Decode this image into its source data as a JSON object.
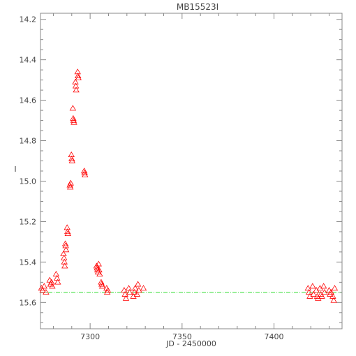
{
  "chart_data": {
    "type": "scatter",
    "title": "MB15523I",
    "xlabel": "JD - 2450000",
    "ylabel": "I",
    "xlim": [
      7273,
      7437
    ],
    "ylim": [
      15.73,
      14.17
    ],
    "y_inverted": true,
    "grid": false,
    "x_ticks": [
      7300,
      7350,
      7400
    ],
    "y_ticks": [
      14.2,
      14.4,
      14.6,
      14.8,
      15.0,
      15.2,
      15.4,
      15.6
    ],
    "marker": "open-triangle",
    "colors": {
      "points": "#ff0000",
      "baseline": "#33dd33",
      "axes": "#888888",
      "text": "#444444"
    },
    "baseline": {
      "style": "dash-dot",
      "y": 15.55,
      "x_range": [
        7273,
        7437
      ]
    },
    "points": [
      {
        "x": 7273.5,
        "y": 15.53
      },
      {
        "x": 7274.2,
        "y": 15.54
      },
      {
        "x": 7275.0,
        "y": 15.52
      },
      {
        "x": 7276.0,
        "y": 15.55
      },
      {
        "x": 7278.0,
        "y": 15.49
      },
      {
        "x": 7278.5,
        "y": 15.51
      },
      {
        "x": 7279.0,
        "y": 15.5
      },
      {
        "x": 7279.4,
        "y": 15.52
      },
      {
        "x": 7281.5,
        "y": 15.46
      },
      {
        "x": 7282.0,
        "y": 15.48
      },
      {
        "x": 7282.4,
        "y": 15.5
      },
      {
        "x": 7285.5,
        "y": 15.36
      },
      {
        "x": 7285.8,
        "y": 15.38
      },
      {
        "x": 7286.0,
        "y": 15.4
      },
      {
        "x": 7286.2,
        "y": 15.42
      },
      {
        "x": 7286.5,
        "y": 15.31
      },
      {
        "x": 7286.7,
        "y": 15.32
      },
      {
        "x": 7286.9,
        "y": 15.34
      },
      {
        "x": 7287.5,
        "y": 15.23
      },
      {
        "x": 7287.7,
        "y": 15.25
      },
      {
        "x": 7287.9,
        "y": 15.26
      },
      {
        "x": 7289.0,
        "y": 15.02
      },
      {
        "x": 7289.2,
        "y": 15.03
      },
      {
        "x": 7289.4,
        "y": 15.01
      },
      {
        "x": 7289.8,
        "y": 14.87
      },
      {
        "x": 7290.0,
        "y": 14.89
      },
      {
        "x": 7290.2,
        "y": 14.9
      },
      {
        "x": 7290.6,
        "y": 14.64
      },
      {
        "x": 7290.8,
        "y": 14.69
      },
      {
        "x": 7291.0,
        "y": 14.7
      },
      {
        "x": 7291.2,
        "y": 14.71
      },
      {
        "x": 7292.0,
        "y": 14.51
      },
      {
        "x": 7292.2,
        "y": 14.53
      },
      {
        "x": 7292.4,
        "y": 14.55
      },
      {
        "x": 7293.2,
        "y": 14.46
      },
      {
        "x": 7293.4,
        "y": 14.48
      },
      {
        "x": 7293.6,
        "y": 14.49
      },
      {
        "x": 7296.8,
        "y": 14.95
      },
      {
        "x": 7297.0,
        "y": 14.96
      },
      {
        "x": 7297.2,
        "y": 14.97
      },
      {
        "x": 7303.5,
        "y": 15.42
      },
      {
        "x": 7303.8,
        "y": 15.43
      },
      {
        "x": 7304.0,
        "y": 15.44
      },
      {
        "x": 7304.3,
        "y": 15.45
      },
      {
        "x": 7304.6,
        "y": 15.41
      },
      {
        "x": 7304.9,
        "y": 15.44
      },
      {
        "x": 7305.2,
        "y": 15.46
      },
      {
        "x": 7306.0,
        "y": 15.5
      },
      {
        "x": 7306.3,
        "y": 15.51
      },
      {
        "x": 7306.6,
        "y": 15.52
      },
      {
        "x": 7309.0,
        "y": 15.53
      },
      {
        "x": 7309.3,
        "y": 15.55
      },
      {
        "x": 7309.6,
        "y": 15.54
      },
      {
        "x": 7318.5,
        "y": 15.54
      },
      {
        "x": 7319.0,
        "y": 15.56
      },
      {
        "x": 7319.5,
        "y": 15.58
      },
      {
        "x": 7321.0,
        "y": 15.53
      },
      {
        "x": 7321.5,
        "y": 15.55
      },
      {
        "x": 7323.5,
        "y": 15.57
      },
      {
        "x": 7324.0,
        "y": 15.55
      },
      {
        "x": 7324.5,
        "y": 15.53
      },
      {
        "x": 7325.5,
        "y": 15.56
      },
      {
        "x": 7326.0,
        "y": 15.51
      },
      {
        "x": 7326.5,
        "y": 15.54
      },
      {
        "x": 7329.0,
        "y": 15.53
      },
      {
        "x": 7418.5,
        "y": 15.53
      },
      {
        "x": 7419.0,
        "y": 15.55
      },
      {
        "x": 7419.5,
        "y": 15.57
      },
      {
        "x": 7421.0,
        "y": 15.52
      },
      {
        "x": 7421.5,
        "y": 15.56
      },
      {
        "x": 7423.0,
        "y": 15.54
      },
      {
        "x": 7423.5,
        "y": 15.57
      },
      {
        "x": 7424.0,
        "y": 15.58
      },
      {
        "x": 7425.0,
        "y": 15.53
      },
      {
        "x": 7425.5,
        "y": 15.56
      },
      {
        "x": 7426.0,
        "y": 15.57
      },
      {
        "x": 7427.0,
        "y": 15.52
      },
      {
        "x": 7427.5,
        "y": 15.55
      },
      {
        "x": 7430.0,
        "y": 15.54
      },
      {
        "x": 7430.5,
        "y": 15.56
      },
      {
        "x": 7431.0,
        "y": 15.55
      },
      {
        "x": 7432.0,
        "y": 15.57
      },
      {
        "x": 7432.5,
        "y": 15.59
      },
      {
        "x": 7433.0,
        "y": 15.53
      }
    ]
  }
}
